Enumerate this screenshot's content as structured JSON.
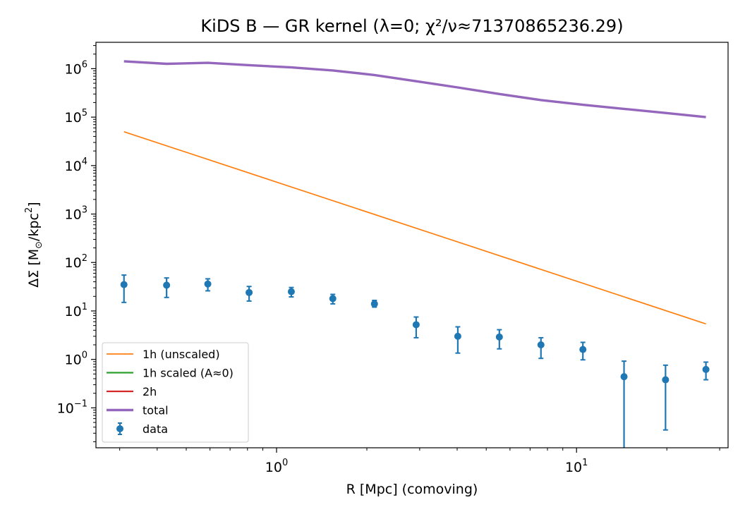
{
  "chart_data": {
    "type": "line",
    "title": "KiDS B — GR kernel (λ=0; χ²/ν≈71370865236.29)",
    "xlabel": "R [Mpc] (comoving)",
    "ylabel_main": "ΔΣ [M",
    "ylabel_sub": "⊙",
    "ylabel_mid": "/kpc",
    "ylabel_sup": "2",
    "ylabel_end": "]",
    "xscale": "log",
    "yscale": "log",
    "xlim": [
      0.25,
      32
    ],
    "ylim": [
      0.015,
      3500000
    ],
    "grid": false,
    "legend_position": "lower-left",
    "x_ticks": [
      {
        "value": 1,
        "base": "10",
        "exp": "0"
      },
      {
        "value": 10,
        "base": "10",
        "exp": "1"
      }
    ],
    "y_ticks": [
      {
        "value": 0.1,
        "base": "10",
        "exp": "−1"
      },
      {
        "value": 1,
        "base": "10",
        "exp": "0"
      },
      {
        "value": 10,
        "base": "10",
        "exp": "1"
      },
      {
        "value": 100,
        "base": "10",
        "exp": "2"
      },
      {
        "value": 1000,
        "base": "10",
        "exp": "3"
      },
      {
        "value": 10000,
        "base": "10",
        "exp": "4"
      },
      {
        "value": 100000,
        "base": "10",
        "exp": "5"
      },
      {
        "value": 1000000,
        "base": "10",
        "exp": "6"
      }
    ],
    "series": [
      {
        "name": "1h (unscaled)",
        "color": "#ff7f0e",
        "width": "thin",
        "x": [
          0.31,
          27.0
        ],
        "y": [
          50000,
          5.4
        ]
      },
      {
        "name": "1h scaled (A≈0)",
        "color": "#2ca02c",
        "width": "normal",
        "x": [],
        "y": []
      },
      {
        "name": "2h",
        "color": "#d62728",
        "width": "normal",
        "x": [],
        "y": []
      },
      {
        "name": "total",
        "color": "#9467bd",
        "width": "thick",
        "x": [
          0.31,
          0.43,
          0.59,
          0.81,
          1.12,
          1.54,
          2.12,
          2.92,
          4.02,
          5.53,
          7.61,
          10.5,
          14.4,
          19.8,
          27.0
        ],
        "y": [
          1420000,
          1260000,
          1320000,
          1180000,
          1060000,
          920000,
          740000,
          550000,
          410000,
          300000,
          225000,
          180000,
          148000,
          122000,
          100000
        ]
      }
    ],
    "data_points": {
      "name": "data",
      "color": "#1f77b4",
      "x": [
        0.31,
        0.43,
        0.59,
        0.81,
        1.12,
        1.54,
        2.12,
        2.92,
        4.02,
        5.53,
        7.61,
        10.5,
        14.4,
        19.8,
        27.0
      ],
      "y": [
        35,
        34,
        36,
        24,
        25,
        18,
        14,
        5.2,
        3.0,
        2.9,
        2.0,
        1.6,
        0.44,
        0.38,
        0.62
      ],
      "yerr_low": [
        15,
        19,
        26,
        16,
        19.5,
        14,
        12,
        2.8,
        1.35,
        1.65,
        1.05,
        0.98,
        0.001,
        0.035,
        0.38
      ],
      "yerr_high": [
        55,
        48,
        46,
        32,
        30.5,
        22,
        16.5,
        7.5,
        4.7,
        4.1,
        2.8,
        2.25,
        0.92,
        0.76,
        0.88
      ]
    }
  }
}
